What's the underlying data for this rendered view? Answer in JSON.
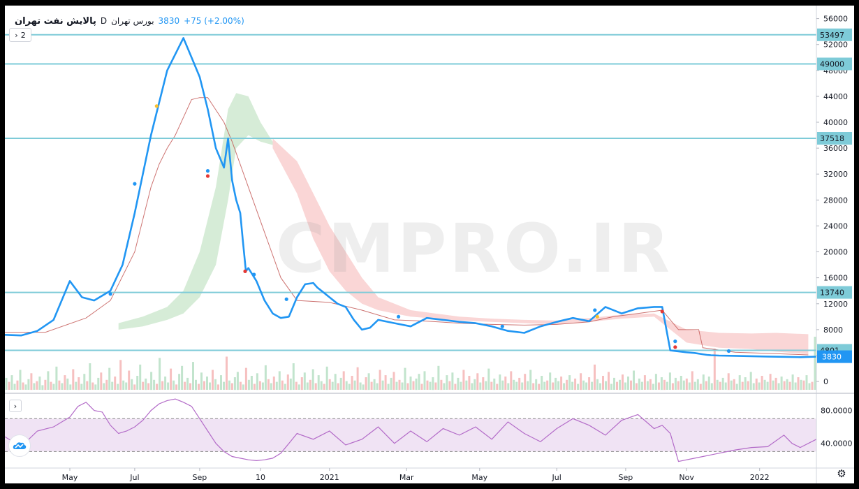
{
  "legend": {
    "symbol": "پالایش نفت تهران",
    "interval": "D",
    "exchange": "بورس تهران",
    "price": "3830",
    "change": "+75 (+2.00%)",
    "indicator_count": "2"
  },
  "watermark": "CMPRO.IR",
  "colors": {
    "price_line": "#2196f3",
    "kijun": "#c0504d",
    "hline": "#7ecbd8",
    "cloud_bull": "#c8e6c9",
    "cloud_bear": "#f8c8c8",
    "vol_up": "#b7dfc4",
    "vol_down": "#f5b5b5",
    "rsi": "#b36bc8",
    "rsi_band": "#ead7ef"
  },
  "chart_data": [
    {
      "type": "line",
      "name": "price",
      "x_labels": [
        "May",
        "Jul",
        "Sep",
        "10",
        "2021",
        "Mar",
        "May",
        "Jul",
        "Sep",
        "Nov",
        "2022"
      ],
      "y_axis_ticks": [
        0,
        4000,
        8000,
        12000,
        16000,
        20000,
        24000,
        28000,
        32000,
        36000,
        40000,
        44000,
        48000,
        52000,
        56000
      ],
      "ylim": [
        -1500,
        58000
      ],
      "last_price": 3830,
      "horizontal_levels": [
        53497,
        49000,
        37518,
        13740,
        4801
      ],
      "series": [
        {
          "x": [
            0,
            2,
            4,
            6,
            8,
            9.5,
            11,
            13,
            14.5,
            16,
            18,
            20,
            22,
            23,
            24,
            25,
            26,
            27,
            27.5,
            28,
            28.5,
            29,
            29.3,
            29.7,
            30,
            31,
            31.5,
            32,
            33,
            34,
            35,
            36,
            37,
            38,
            38.5,
            39,
            40,
            41,
            42,
            43,
            44,
            45,
            46,
            48,
            50,
            52,
            54,
            56,
            58,
            60,
            62,
            64,
            66,
            68,
            70,
            72,
            74,
            76,
            78,
            80,
            81,
            82,
            84,
            85,
            86,
            86.5,
            87,
            88,
            90,
            92,
            94,
            96,
            98,
            100
          ],
          "y": [
            7200,
            7100,
            7800,
            9500,
            15500,
            13000,
            12500,
            14000,
            18000,
            26000,
            38000,
            48000,
            53000,
            50000,
            47000,
            42000,
            36000,
            33000,
            37500,
            31000,
            28000,
            26000,
            22000,
            17000,
            17500,
            15500,
            14000,
            12500,
            10500,
            9800,
            10000,
            13000,
            15000,
            15200,
            14500,
            14000,
            13000,
            12000,
            11500,
            9500,
            8000,
            8300,
            9500,
            9000,
            8500,
            9800,
            9500,
            9200,
            9000,
            8500,
            7800,
            7500,
            8500,
            9200,
            9800,
            9300,
            11500,
            10500,
            11300,
            11500,
            11500,
            4800,
            4500,
            4400,
            4200,
            4100,
            4050,
            4000,
            3950,
            3900,
            3850,
            3800,
            3750,
            3830
          ]
        }
      ],
      "markers": [
        {
          "x": 13,
          "y": 13500,
          "color": "blue"
        },
        {
          "x": 16,
          "y": 30500,
          "color": "blue"
        },
        {
          "x": 18.7,
          "y": 42500,
          "color": "yellow"
        },
        {
          "x": 25,
          "y": 32500,
          "color": "blue"
        },
        {
          "x": 25,
          "y": 31700,
          "color": "red"
        },
        {
          "x": 29.6,
          "y": 17000,
          "color": "red"
        },
        {
          "x": 30.7,
          "y": 16500,
          "color": "blue"
        },
        {
          "x": 34.7,
          "y": 12700,
          "color": "blue"
        },
        {
          "x": 48.5,
          "y": 10000,
          "color": "blue"
        },
        {
          "x": 61.3,
          "y": 8500,
          "color": "blue"
        },
        {
          "x": 72.7,
          "y": 11000,
          "color": "blue"
        },
        {
          "x": 73,
          "y": 10000,
          "color": "yellow"
        },
        {
          "x": 81,
          "y": 10800,
          "color": "red"
        },
        {
          "x": 82.6,
          "y": 6200,
          "color": "blue"
        },
        {
          "x": 82.6,
          "y": 5300,
          "color": "red"
        },
        {
          "x": 89.2,
          "y": 4700,
          "color": "blue"
        }
      ]
    },
    {
      "type": "area",
      "name": "ichimoku cloud",
      "cloud_bull": {
        "x": [
          14,
          17,
          20,
          22,
          24,
          26,
          27.5,
          28.5,
          30,
          31.5,
          33
        ],
        "upper": [
          9000,
          10000,
          11500,
          14000,
          20000,
          30000,
          42000,
          44500,
          44000,
          40000,
          37000
        ],
        "lower": [
          8000,
          8500,
          9500,
          10500,
          13000,
          18000,
          28000,
          36000,
          38000,
          37000,
          36500
        ]
      },
      "cloud_bear": {
        "x": [
          33,
          36,
          38,
          40,
          42,
          44,
          46,
          48,
          50,
          53,
          56,
          60,
          64,
          68,
          72,
          76,
          80,
          84,
          88,
          92,
          95,
          99
        ],
        "upper": [
          37500,
          34000,
          29000,
          24000,
          20000,
          16000,
          13000,
          12000,
          11000,
          10500,
          10000,
          9700,
          9500,
          9400,
          9800,
          10300,
          10500,
          8000,
          7500,
          7400,
          7500,
          7300
        ],
        "lower": [
          36000,
          29000,
          22000,
          17000,
          14000,
          12000,
          11000,
          10500,
          10000,
          9700,
          9400,
          9200,
          9000,
          8800,
          9200,
          9700,
          10000,
          6000,
          5200,
          5000,
          4600,
          4200
        ]
      }
    },
    {
      "type": "line",
      "name": "kijun",
      "x": [
        0,
        5,
        10,
        13,
        16,
        18,
        19,
        20,
        21,
        23,
        24,
        25,
        27,
        28,
        30,
        32,
        34,
        36,
        40,
        44,
        48,
        52,
        56,
        60,
        64,
        68,
        72,
        75,
        78,
        81,
        83,
        85.5,
        86,
        90,
        95,
        99
      ],
      "y": [
        7600,
        7600,
        9800,
        12500,
        20000,
        30000,
        33500,
        36000,
        38000,
        43500,
        43800,
        43800,
        40000,
        37000,
        30000,
        23000,
        16000,
        12500,
        12200,
        11000,
        9500,
        9300,
        9000,
        8800,
        8700,
        8800,
        9200,
        10000,
        10500,
        11000,
        8000,
        8000,
        5200,
        4500,
        4300,
        4100
      ]
    },
    {
      "type": "bar",
      "name": "volume",
      "ylim": [
        0,
        100
      ],
      "values": [
        18,
        12,
        22,
        9,
        14,
        30,
        11,
        8,
        16,
        25,
        10,
        13,
        20,
        7,
        15,
        28,
        12,
        9,
        35,
        14,
        10,
        22,
        17,
        8,
        31,
        12,
        19,
        9,
        24,
        13,
        40,
        11,
        8,
        18,
        26,
        10,
        15,
        33,
        12,
        20,
        9,
        45,
        14,
        11,
        29,
        16,
        8,
        21,
        38,
        12,
        17,
        10,
        27,
        15,
        9,
        48,
        13,
        20,
        11,
        32,
        14,
        8,
        24,
        36,
        12,
        18,
        10,
        42,
        15,
        9,
        26,
        13,
        20,
        11,
        30,
        16,
        8,
        22,
        12,
        50,
        14,
        10,
        19,
        27,
        12,
        8,
        33,
        15,
        21,
        9,
        25,
        13,
        11,
        37,
        16,
        10,
        20,
        12,
        28,
        14,
        9,
        23,
        17,
        40,
        12,
        8,
        19,
        26,
        11,
        15,
        31,
        10,
        22,
        13,
        9,
        35,
        16,
        12,
        24,
        10,
        18,
        28,
        13,
        9,
        21,
        14,
        34,
        11,
        8,
        19,
        25,
        12,
        16,
        10,
        30,
        14,
        22,
        9,
        18,
        27,
        12,
        15,
        11,
        33,
        10,
        20,
        13,
        17,
        24,
        9,
        28,
        14,
        12,
        19,
        11,
        36,
        15,
        10,
        22,
        13,
        26,
        9,
        18,
        12,
        30,
        14,
        21,
        10,
        16,
        25,
        11,
        19,
        13,
        32,
        12,
        17,
        9,
        23,
        14,
        20,
        10,
        28,
        15,
        12,
        18,
        11,
        24,
        13,
        30,
        10,
        16,
        9,
        21,
        12,
        14,
        26,
        11,
        18,
        13,
        20,
        10,
        15,
        22,
        12,
        17,
        9,
        25,
        14,
        11,
        19,
        12,
        38,
        16,
        10,
        21,
        13,
        27,
        9,
        18,
        12,
        15,
        23,
        11,
        20,
        14,
        29,
        10,
        17,
        12,
        22,
        13,
        16,
        9,
        24,
        11,
        19,
        15,
        12,
        26,
        10,
        18,
        13,
        21,
        14,
        17,
        11,
        28,
        12,
        16,
        9,
        23,
        13,
        20,
        10,
        62,
        15,
        12,
        18,
        11,
        25,
        14,
        16,
        9,
        22,
        12,
        19,
        13,
        27,
        10,
        17,
        11,
        21,
        15,
        12,
        24,
        14,
        18,
        10,
        20,
        13,
        16,
        12,
        23,
        11,
        19,
        15,
        14,
        22,
        10,
        12,
        80
      ],
      "up_pattern": [
        1,
        0,
        1,
        1,
        0,
        1,
        0,
        1,
        1,
        0
      ]
    },
    {
      "type": "line",
      "name": "RSI",
      "y_axis_ticks": [
        40,
        80
      ],
      "y_axis_labels": [
        "40.0000",
        "80.0000"
      ],
      "band": [
        30,
        70
      ],
      "ylim": [
        10,
        100
      ],
      "x": [
        0,
        2,
        4,
        6,
        8,
        9,
        10,
        11,
        12,
        13,
        14,
        15,
        16,
        17,
        18,
        19,
        20,
        21,
        22,
        23,
        24,
        25,
        26,
        27,
        28,
        29,
        30,
        31,
        32,
        33,
        34,
        35,
        36,
        38,
        40,
        42,
        44,
        46,
        48,
        50,
        52,
        54,
        56,
        58,
        60,
        62,
        64,
        66,
        68,
        70,
        72,
        74,
        76,
        78,
        80,
        81,
        82,
        83,
        85,
        88,
        90,
        92,
        94,
        96,
        97,
        98,
        100
      ],
      "y": [
        48,
        36,
        55,
        60,
        72,
        85,
        90,
        80,
        78,
        62,
        52,
        55,
        60,
        68,
        80,
        88,
        92,
        94,
        90,
        85,
        70,
        55,
        40,
        30,
        24,
        22,
        20,
        19,
        20,
        22,
        28,
        40,
        52,
        45,
        55,
        38,
        45,
        60,
        40,
        55,
        42,
        58,
        50,
        60,
        45,
        66,
        52,
        42,
        58,
        70,
        62,
        50,
        68,
        75,
        58,
        62,
        52,
        18,
        22,
        28,
        32,
        35,
        36,
        50,
        40,
        35,
        45
      ]
    }
  ]
}
